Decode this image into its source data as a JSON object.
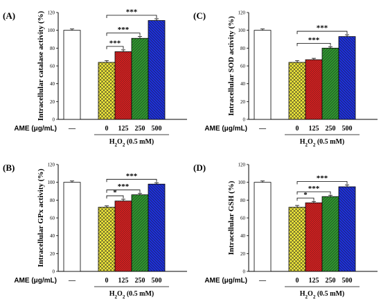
{
  "colors": {
    "control": "#ffffff",
    "ame_0": "#f2ea3a",
    "ame_125": "#d81e1e",
    "ame_250": "#2e9a2e",
    "ame_500": "#1b2fe0",
    "axis": "#000000",
    "hatch": "#222222"
  },
  "chart_data": [
    {
      "type": "bar",
      "panel": "(A)",
      "ylabel": "Intracellular catalase activity (%)",
      "ylim": [
        0,
        120
      ],
      "yticks": [
        "0",
        "20",
        "40",
        "60",
        "80",
        "100",
        "120"
      ],
      "group_label": "AME (μg/mL)",
      "categories": [
        "—",
        "0",
        "125",
        "250",
        "500"
      ],
      "values": [
        100,
        64,
        76,
        91,
        111
      ],
      "errors": [
        1.5,
        2,
        2,
        2,
        2
      ],
      "treatment_label": "H₂O₂ (0.5 mM)",
      "significance": [
        {
          "from": 1,
          "to": 2,
          "label": "***"
        },
        {
          "from": 1,
          "to": 3,
          "label": "***"
        },
        {
          "from": 1,
          "to": 4,
          "label": "***"
        }
      ]
    },
    {
      "type": "bar",
      "panel": "(C)",
      "ylabel": "Intracellular SOD activity (%)",
      "ylim": [
        0,
        120
      ],
      "yticks": [
        "0",
        "20",
        "40",
        "60",
        "80",
        "100",
        "120"
      ],
      "group_label": "AME (μg/mL)",
      "categories": [
        "—",
        "0",
        "125",
        "250",
        "500"
      ],
      "values": [
        100,
        64,
        67,
        80,
        93
      ],
      "errors": [
        1.5,
        2,
        1.5,
        1.5,
        2
      ],
      "treatment_label": "H₂O₂ (0.5 mM)",
      "significance": [
        {
          "from": 1,
          "to": 3,
          "label": "***"
        },
        {
          "from": 1,
          "to": 4,
          "label": "***"
        }
      ]
    },
    {
      "type": "bar",
      "panel": "(B)",
      "ylabel": "Intracellular GPx activity (%)",
      "ylim": [
        0,
        120
      ],
      "yticks": [
        "0",
        "20",
        "40",
        "60",
        "80",
        "100",
        "120"
      ],
      "group_label": "AME (μg/mL)",
      "categories": [
        "—",
        "0",
        "125",
        "250",
        "500"
      ],
      "values": [
        100,
        72,
        79,
        86,
        98
      ],
      "errors": [
        1.5,
        1.5,
        2,
        1.5,
        1.5
      ],
      "treatment_label": "H₂O₂ (0.5 mM)",
      "significance": [
        {
          "from": 1,
          "to": 2,
          "label": "*"
        },
        {
          "from": 1,
          "to": 3,
          "label": "***"
        },
        {
          "from": 1,
          "to": 4,
          "label": "***"
        }
      ]
    },
    {
      "type": "bar",
      "panel": "(D)",
      "ylabel": "Intracellular GSH (%)",
      "ylim": [
        0,
        120
      ],
      "yticks": [
        "0",
        "20",
        "40",
        "60",
        "80",
        "100",
        "120"
      ],
      "group_label": "AME (μg/mL)",
      "categories": [
        "—",
        "0",
        "125",
        "250",
        "500"
      ],
      "values": [
        100,
        72,
        77,
        84,
        95
      ],
      "errors": [
        1.5,
        2,
        1.5,
        1.5,
        2
      ],
      "treatment_label": "H₂O₂ (0.5 mM)",
      "significance": [
        {
          "from": 1,
          "to": 2,
          "label": "*"
        },
        {
          "from": 1,
          "to": 3,
          "label": "***"
        },
        {
          "from": 1,
          "to": 4,
          "label": "***"
        }
      ]
    }
  ]
}
